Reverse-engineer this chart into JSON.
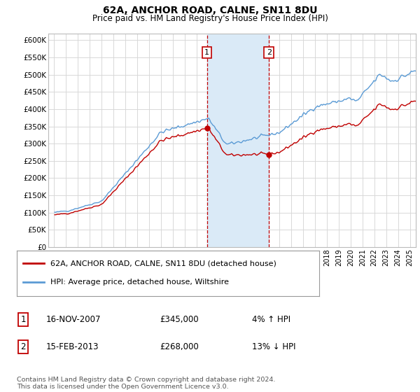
{
  "title": "62A, ANCHOR ROAD, CALNE, SN11 8DU",
  "subtitle": "Price paid vs. HM Land Registry's House Price Index (HPI)",
  "legend_line1": "62A, ANCHOR ROAD, CALNE, SN11 8DU (detached house)",
  "legend_line2": "HPI: Average price, detached house, Wiltshire",
  "transaction1_label": "1",
  "transaction1_date": "16-NOV-2007",
  "transaction1_price": "£345,000",
  "transaction1_hpi": "4% ↑ HPI",
  "transaction1_year": 2007.88,
  "transaction1_value": 345000,
  "transaction2_label": "2",
  "transaction2_date": "15-FEB-2013",
  "transaction2_price": "£268,000",
  "transaction2_hpi": "13% ↓ HPI",
  "transaction2_year": 2013.12,
  "transaction2_value": 268000,
  "shade_x1": 2007.88,
  "shade_x2": 2013.12,
  "ylim_min": 0,
  "ylim_max": 620000,
  "xlim_min": 1994.5,
  "xlim_max": 2025.5,
  "copyright_text": "Contains HM Land Registry data © Crown copyright and database right 2024.\nThis data is licensed under the Open Government Licence v3.0.",
  "hpi_color": "#5b9bd5",
  "price_color": "#c00000",
  "shade_color": "#daeaf7",
  "grid_color": "#d8d8d8",
  "bg_color": "#ffffff"
}
